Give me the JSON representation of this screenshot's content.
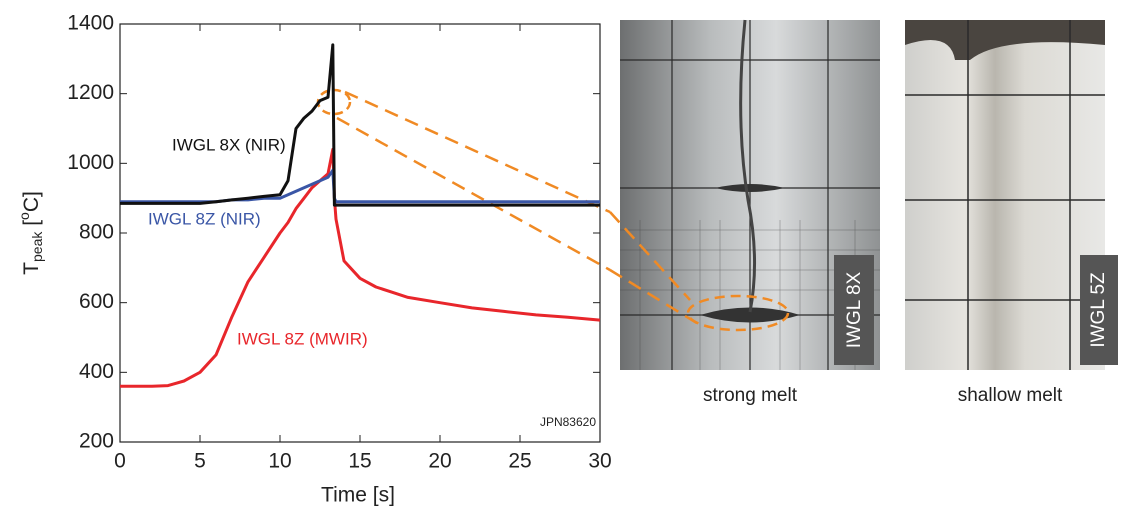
{
  "chart_data": {
    "type": "line",
    "x_label": "Time [s]",
    "y_label": {
      "base": "T",
      "sub": "peak",
      "open": " [",
      "sup": "o",
      "close": "C]"
    },
    "note": "JPN83620",
    "x": [
      0,
      1,
      2,
      3,
      4,
      5,
      6,
      7,
      8,
      9,
      10,
      10.5,
      11,
      11.5,
      12,
      12.5,
      13,
      13.3,
      13.4,
      13.5,
      14,
      15,
      16,
      17,
      18,
      20,
      22,
      24,
      26,
      28,
      30
    ],
    "series": [
      {
        "name": "IWGL 8Z (MWIR)",
        "color": "#e8262b",
        "values": [
          360,
          360,
          360,
          362,
          375,
          400,
          450,
          560,
          660,
          730,
          800,
          830,
          870,
          900,
          930,
          950,
          970,
          1040,
          900,
          840,
          720,
          670,
          645,
          630,
          615,
          600,
          585,
          575,
          565,
          558,
          550
        ]
      },
      {
        "name": "IWGL 8Z (NIR)",
        "color": "#3a56a6",
        "values": [
          890,
          890,
          890,
          890,
          890,
          890,
          890,
          895,
          895,
          900,
          900,
          910,
          920,
          930,
          940,
          950,
          960,
          980,
          900,
          890,
          890,
          890,
          890,
          890,
          890,
          890,
          890,
          890,
          890,
          890,
          890
        ]
      },
      {
        "name": "IWGL 8X (NIR)",
        "color": "#111111",
        "values": [
          885,
          885,
          885,
          885,
          885,
          885,
          890,
          895,
          900,
          905,
          910,
          950,
          1100,
          1130,
          1150,
          1180,
          1190,
          1340,
          880,
          880,
          880,
          880,
          880,
          880,
          880,
          880,
          880,
          880,
          880,
          880,
          880
        ]
      }
    ],
    "xlim": [
      0,
      30
    ],
    "xticks": [
      0,
      5,
      10,
      15,
      20,
      25,
      30
    ],
    "ylim": [
      200,
      1400
    ],
    "yticks": [
      200,
      400,
      600,
      800,
      1000,
      1200,
      1400
    ]
  },
  "panels": [
    {
      "label": "IWGL 8X",
      "caption": "strong melt"
    },
    {
      "label": "IWGL 5Z",
      "caption": "shallow melt"
    }
  ]
}
